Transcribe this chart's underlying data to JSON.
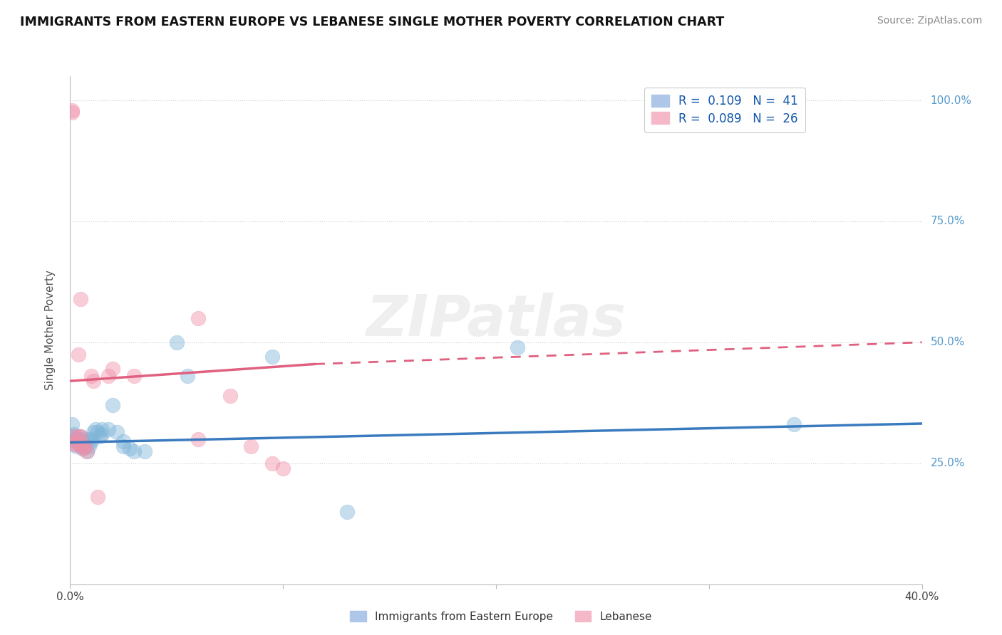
{
  "title": "IMMIGRANTS FROM EASTERN EUROPE VS LEBANESE SINGLE MOTHER POVERTY CORRELATION CHART",
  "source": "Source: ZipAtlas.com",
  "ylabel": "Single Mother Poverty",
  "xlim": [
    0.0,
    0.4
  ],
  "ylim": [
    0.0,
    1.05
  ],
  "legend_entries": [
    {
      "label": "R =  0.109   N =  41",
      "color": "#aec6e8"
    },
    {
      "label": "R =  0.089   N =  26",
      "color": "#f4b8c8"
    }
  ],
  "legend_labels_bottom": [
    "Immigrants from Eastern Europe",
    "Lebanese"
  ],
  "blue_color": "#7fb5d9",
  "pink_color": "#f090aa",
  "blue_line_color": "#3a7abf",
  "pink_line_color": "#e06080",
  "watermark_text": "ZIPatlas",
  "blue_scatter": [
    [
      0.001,
      0.305
    ],
    [
      0.001,
      0.33
    ],
    [
      0.002,
      0.31
    ],
    [
      0.002,
      0.3
    ],
    [
      0.003,
      0.3
    ],
    [
      0.003,
      0.285
    ],
    [
      0.003,
      0.3
    ],
    [
      0.004,
      0.295
    ],
    [
      0.004,
      0.29
    ],
    [
      0.005,
      0.29
    ],
    [
      0.005,
      0.305
    ],
    [
      0.005,
      0.3
    ],
    [
      0.006,
      0.28
    ],
    [
      0.006,
      0.285
    ],
    [
      0.007,
      0.295
    ],
    [
      0.007,
      0.285
    ],
    [
      0.008,
      0.3
    ],
    [
      0.008,
      0.275
    ],
    [
      0.009,
      0.285
    ],
    [
      0.01,
      0.295
    ],
    [
      0.01,
      0.3
    ],
    [
      0.011,
      0.315
    ],
    [
      0.012,
      0.32
    ],
    [
      0.013,
      0.315
    ],
    [
      0.014,
      0.305
    ],
    [
      0.015,
      0.32
    ],
    [
      0.015,
      0.31
    ],
    [
      0.018,
      0.32
    ],
    [
      0.02,
      0.37
    ],
    [
      0.022,
      0.315
    ],
    [
      0.025,
      0.295
    ],
    [
      0.025,
      0.285
    ],
    [
      0.028,
      0.28
    ],
    [
      0.03,
      0.275
    ],
    [
      0.035,
      0.275
    ],
    [
      0.05,
      0.5
    ],
    [
      0.055,
      0.43
    ],
    [
      0.095,
      0.47
    ],
    [
      0.13,
      0.15
    ],
    [
      0.21,
      0.49
    ],
    [
      0.34,
      0.33
    ]
  ],
  "pink_scatter": [
    [
      0.001,
      0.98
    ],
    [
      0.001,
      0.975
    ],
    [
      0.002,
      0.29
    ],
    [
      0.002,
      0.305
    ],
    [
      0.003,
      0.295
    ],
    [
      0.003,
      0.29
    ],
    [
      0.004,
      0.475
    ],
    [
      0.004,
      0.305
    ],
    [
      0.005,
      0.59
    ],
    [
      0.005,
      0.305
    ],
    [
      0.006,
      0.285
    ],
    [
      0.006,
      0.28
    ],
    [
      0.007,
      0.285
    ],
    [
      0.008,
      0.275
    ],
    [
      0.01,
      0.43
    ],
    [
      0.011,
      0.42
    ],
    [
      0.013,
      0.18
    ],
    [
      0.018,
      0.43
    ],
    [
      0.02,
      0.445
    ],
    [
      0.03,
      0.43
    ],
    [
      0.06,
      0.55
    ],
    [
      0.06,
      0.3
    ],
    [
      0.075,
      0.39
    ],
    [
      0.085,
      0.285
    ],
    [
      0.095,
      0.25
    ],
    [
      0.1,
      0.24
    ]
  ],
  "blue_line": {
    "x0": 0.0,
    "y0": 0.293,
    "x1": 0.4,
    "y1": 0.332
  },
  "pink_line_solid": {
    "x0": 0.0,
    "y0": 0.42,
    "x1": 0.115,
    "y1": 0.455
  },
  "pink_line_dashed": {
    "x0": 0.115,
    "y0": 0.455,
    "x1": 0.4,
    "y1": 0.5
  }
}
